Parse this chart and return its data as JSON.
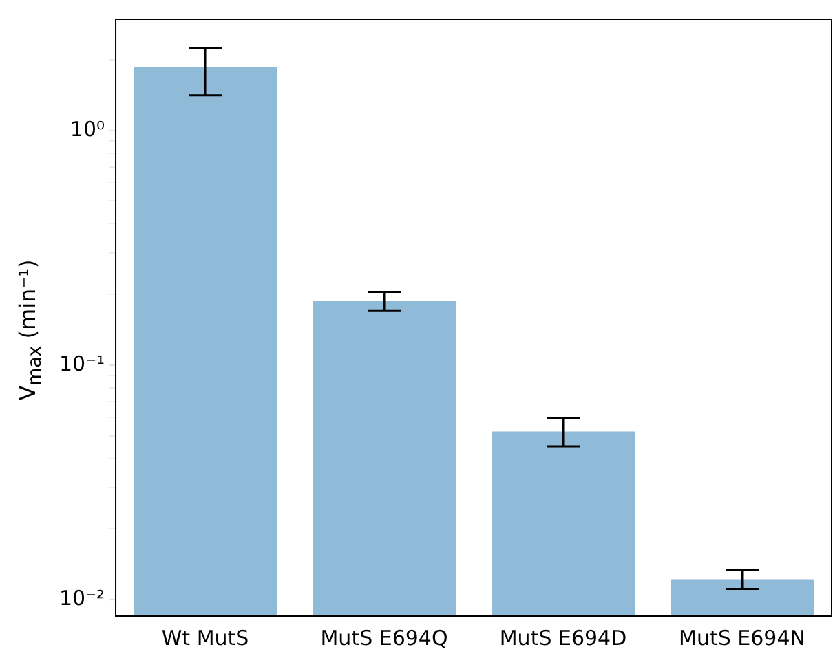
{
  "chart_data": {
    "type": "bar",
    "ylabel": "V$_{max}$ (min⁻¹)",
    "categories": [
      "Wt MutS",
      "MutS E694Q",
      "MutS E694D",
      "MutS E694N"
    ],
    "values": [
      1.87,
      0.187,
      0.0521,
      0.0122
    ],
    "errors": [
      [
        1.41,
        2.25
      ],
      [
        0.17,
        0.205
      ],
      [
        0.045,
        0.0596
      ],
      [
        0.0111,
        0.0134
      ]
    ],
    "color": "#8fbbd9",
    "log": true,
    "ylim": [
      0.0085,
      2.98
    ],
    "yticks": [
      {
        "value": 0.01,
        "label": "10⁻²"
      },
      {
        "value": 0.02,
        "label": null
      },
      {
        "value": 0.03,
        "label": null
      },
      {
        "value": 0.04,
        "label": null
      },
      {
        "value": 0.05,
        "label": null
      },
      {
        "value": 0.06,
        "label": null
      },
      {
        "value": 0.07,
        "label": null
      },
      {
        "value": 0.08,
        "label": null
      },
      {
        "value": 0.09,
        "label": null
      },
      {
        "value": 0.1,
        "label": "10⁻¹"
      },
      {
        "value": 0.2,
        "label": null
      },
      {
        "value": 0.3,
        "label": null
      },
      {
        "value": 0.4,
        "label": null
      },
      {
        "value": 0.5,
        "label": null
      },
      {
        "value": 0.6,
        "label": null
      },
      {
        "value": 0.7,
        "label": null
      },
      {
        "value": 0.8,
        "label": null
      },
      {
        "value": 0.9,
        "label": null
      },
      {
        "value": 1,
        "label": "10⁰"
      },
      {
        "value": 2,
        "label": null
      }
    ],
    "grid": false,
    "legend": false
  }
}
